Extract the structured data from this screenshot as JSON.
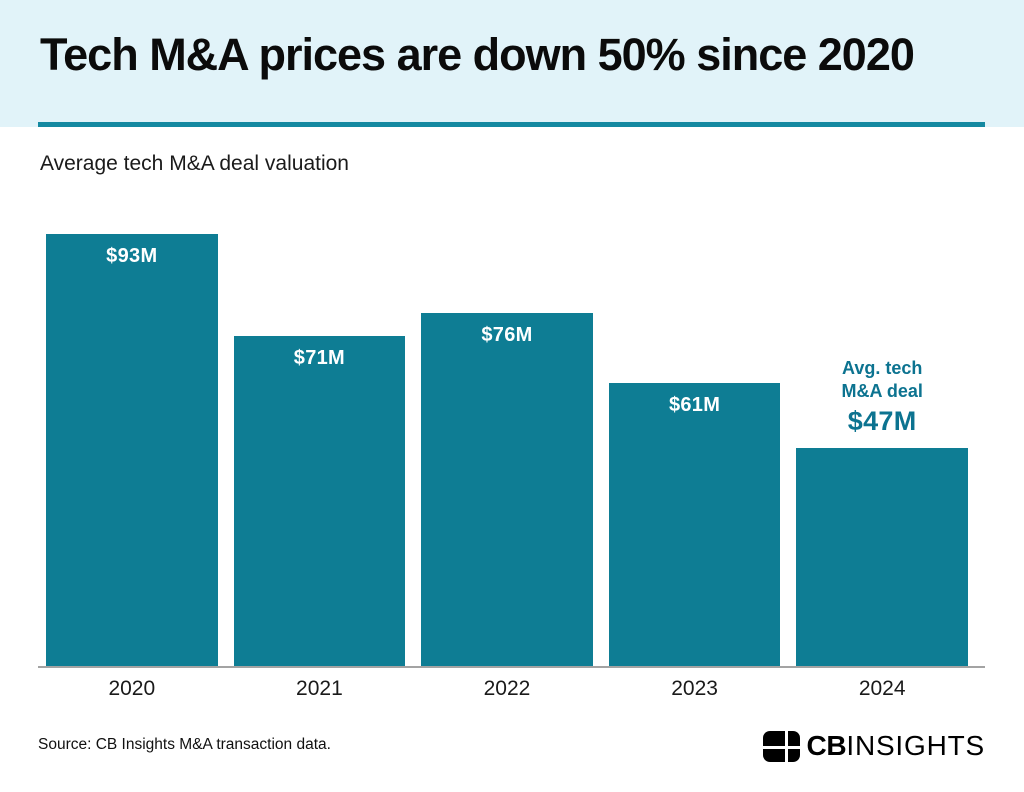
{
  "header": {
    "title": "Tech M&A prices are down 50% since 2020"
  },
  "subtitle": "Average tech M&A deal valuation",
  "chart_data": {
    "type": "bar",
    "title": "Average tech M&A deal valuation",
    "categories": [
      "2020",
      "2021",
      "2022",
      "2023",
      "2024"
    ],
    "values": [
      93,
      71,
      76,
      61,
      47
    ],
    "bar_labels": [
      "$93M",
      "$71M",
      "$76M",
      "$61M",
      ""
    ],
    "annotation": {
      "target": "2024",
      "line1": "Avg. tech",
      "line2": "M&A deal",
      "value": "$47M"
    },
    "xlabel": "",
    "ylabel": "",
    "ylim": [
      0,
      100
    ],
    "grid": false,
    "legend": false,
    "bar_color": "#0E7D94",
    "label_color": "#FFFFFF",
    "annotation_color": "#0C7390"
  },
  "footer": {
    "source": "Source: CB Insights M&A transaction data.",
    "logo": {
      "bold": "CB",
      "light": "INSIGHTS"
    }
  },
  "colors": {
    "bar": "#0E7D94",
    "header_bg": "#E1F3F9",
    "divider": "#1489A1",
    "annotation_text": "#0C7390",
    "axis_line": "#A3A3A3",
    "title_text": "#0B0B0B",
    "body_text": "#1A1A1A"
  }
}
